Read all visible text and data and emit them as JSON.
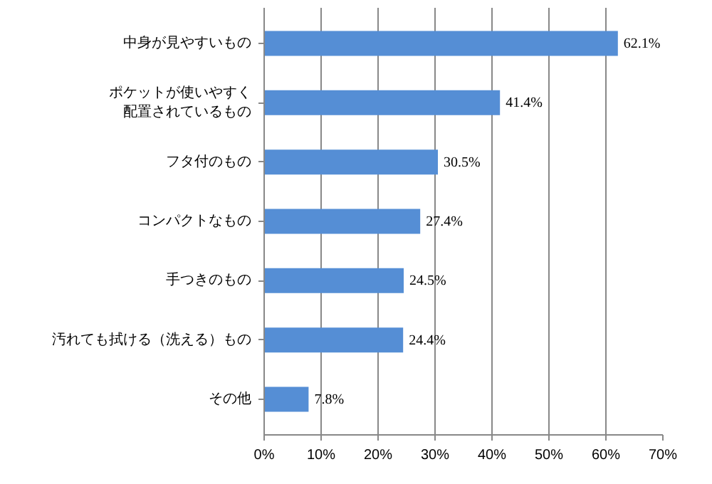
{
  "chart_data": {
    "type": "bar",
    "orientation": "horizontal",
    "categories": [
      "中身が見やすいもの",
      "ポケットが使いやすく配置されているもの",
      "フタ付のもの",
      "コンパクトなもの",
      "手つきのもの",
      "汚れても拭ける（洗える）もの",
      "その他"
    ],
    "values": [
      62.1,
      41.4,
      30.5,
      27.4,
      24.5,
      24.4,
      7.8
    ],
    "value_labels": [
      "62.1%",
      "41.4%",
      "30.5%",
      "27.4%",
      "24.5%",
      "24.4%",
      "7.8%"
    ],
    "color": "#558ed5",
    "xlim": [
      0,
      70
    ],
    "xticks": [
      {
        "value": 0,
        "label": "0%"
      },
      {
        "value": 10,
        "label": "10%"
      },
      {
        "value": 20,
        "label": "20%"
      },
      {
        "value": 30,
        "label": "30%"
      },
      {
        "value": 40,
        "label": "40%"
      },
      {
        "value": 50,
        "label": "50%"
      },
      {
        "value": 60,
        "label": "60%"
      },
      {
        "value": 70,
        "label": "70%"
      }
    ],
    "grid": "x"
  }
}
